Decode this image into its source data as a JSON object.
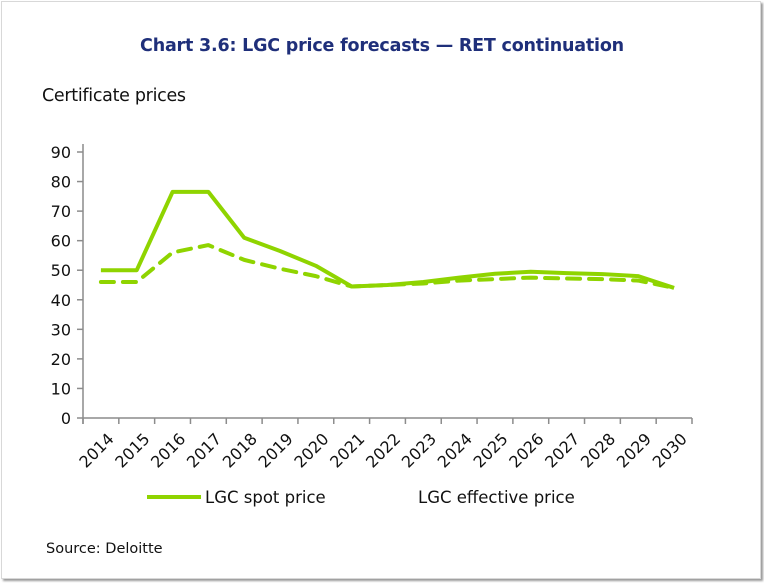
{
  "title": "Chart 3.6: LGC price forecasts — RET continuation",
  "source": "Source: Deloitte",
  "colors": {
    "title": "#1f2f7a",
    "series": "#8fd400",
    "axis": "#8c8c8c"
  },
  "chart_data": {
    "type": "line",
    "title": "Chart 3.6: LGC price forecasts — RET continuation",
    "ylabel": "Certificate prices",
    "xlabel": "",
    "ylim": [
      0,
      90
    ],
    "yticks": [
      0,
      10,
      20,
      30,
      40,
      50,
      60,
      70,
      80,
      90
    ],
    "grid": false,
    "legend_position": "bottom",
    "categories": [
      "2014",
      "2015",
      "2016",
      "2017",
      "2018",
      "2019",
      "2020",
      "2021",
      "2022",
      "2023",
      "2024",
      "2025",
      "2026",
      "2027",
      "2028",
      "2029",
      "2030"
    ],
    "series": [
      {
        "name": "LGC spot price",
        "style": "solid",
        "values": [
          50,
          50,
          76.5,
          76.5,
          61,
          56.5,
          51.5,
          44.5,
          45,
          46,
          47.5,
          48.8,
          49.5,
          49,
          48.7,
          48,
          44
        ]
      },
      {
        "name": "LGC effective price",
        "style": "dashed",
        "values": [
          46,
          46,
          56,
          58.5,
          53.5,
          50.5,
          48,
          44.5,
          45,
          45.5,
          46.5,
          47,
          47.5,
          47.2,
          47,
          46.5,
          44
        ]
      }
    ]
  }
}
